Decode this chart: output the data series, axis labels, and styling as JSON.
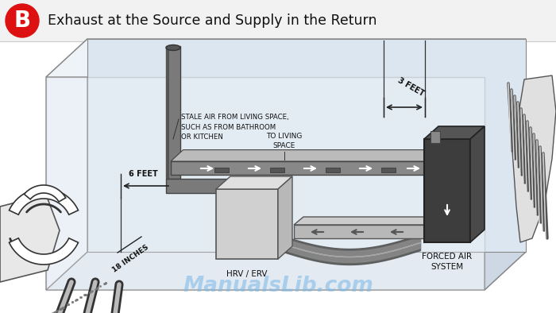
{
  "title": "Exhaust at the Source and Supply in the Return",
  "badge_letter": "B",
  "badge_color": "#dd1111",
  "badge_text_color": "#ffffff",
  "bg_color": "#ffffff",
  "watermark": "ManualsLib.com",
  "watermark_color": "#7ab8e8",
  "header_bg": "#f2f2f2",
  "header_border": "#cccccc",
  "labels": {
    "stale_air": "STALE AIR FROM LIVING SPACE,\nSUCH AS FROM BATHROOM\nOR KITCHEN",
    "to_living": "TO LIVING\nSPACE",
    "six_feet": "6 FEET",
    "three_feet": "3 FEET",
    "eighteen_inches": "18 INCHES",
    "hrv_erv": "HRV / ERV",
    "forced_air": "FORCED AIR\nSYSTEM"
  },
  "room_fill": "#eef2f8",
  "room_wall_left": "#dce5ef",
  "room_wall_right": "#d0dae5",
  "room_wall_back": "#e0e8f0",
  "room_edge": "#888888",
  "duct_gray": "#888888",
  "duct_mid": "#aaaaaa",
  "duct_light": "#cccccc",
  "duct_dark": "#555555",
  "fas_dark": "#3a3a3a",
  "fas_mid": "#555555",
  "line_color": "#222222",
  "text_color": "#1a1a1a"
}
